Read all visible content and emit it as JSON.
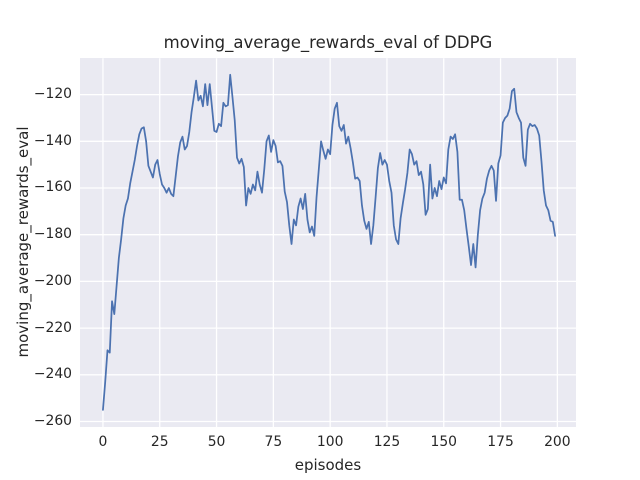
{
  "chart_data": {
    "type": "line",
    "title": "moving_average_rewards_eval of DDPG",
    "xlabel": "episodes",
    "ylabel": "moving_average_rewards_eval",
    "series_name": "moving_average_rewards_eval",
    "legend": false,
    "grid": true,
    "x_ticks": [
      0,
      25,
      50,
      75,
      100,
      125,
      150,
      175,
      200
    ],
    "y_ticks": [
      -120,
      -140,
      -160,
      -180,
      -200,
      -220,
      -240,
      -260
    ],
    "xlim": [
      -10.1,
      208.2
    ],
    "ylim": [
      -262.7,
      -104.4
    ],
    "x_start": 0,
    "x_step": 1,
    "styles": {
      "fig_bg": "#ffffff",
      "plot_bg": "#eaeaf2",
      "grid_color": "#ffffff",
      "line_color": "#4c72b0",
      "text_color": "#262626"
    },
    "y": [
      -255,
      -243,
      -229.5,
      -230.5,
      -208.5,
      -214,
      -202,
      -190,
      -182,
      -173,
      -167.5,
      -164.5,
      -158,
      -153,
      -148,
      -142,
      -137,
      -134.5,
      -134,
      -140,
      -150.5,
      -153,
      -155.5,
      -150,
      -148,
      -154,
      -158.5,
      -160,
      -162,
      -160,
      -162.5,
      -163.5,
      -155,
      -146.5,
      -140.5,
      -138,
      -143.5,
      -142,
      -136,
      -127.5,
      -121,
      -114,
      -122.5,
      -120.5,
      -125,
      -115.5,
      -124.5,
      -115.5,
      -125.5,
      -135.5,
      -136,
      -132.5,
      -133.5,
      -123.5,
      -125,
      -124.5,
      -111.5,
      -121,
      -131,
      -147,
      -149.5,
      -147.5,
      -151,
      -167.5,
      -160,
      -162.5,
      -158.5,
      -161,
      -153,
      -158.5,
      -162,
      -152,
      -140,
      -137.5,
      -144.5,
      -139.5,
      -142,
      -149,
      -148.5,
      -150.5,
      -161.5,
      -166,
      -176,
      -184,
      -173.5,
      -176,
      -168,
      -164.5,
      -169,
      -162.5,
      -173.5,
      -179,
      -176.5,
      -180.5,
      -164,
      -152,
      -140,
      -144,
      -147.5,
      -143.5,
      -145.5,
      -133,
      -126,
      -123.5,
      -133.5,
      -135.5,
      -133,
      -141,
      -138,
      -143,
      -149,
      -156,
      -155.5,
      -157,
      -167.5,
      -174,
      -177.5,
      -174.5,
      -184,
      -176,
      -164,
      -151.5,
      -145,
      -150,
      -148,
      -150,
      -157,
      -162,
      -176,
      -182,
      -184,
      -173,
      -166.5,
      -160.5,
      -153.5,
      -143.5,
      -145.5,
      -150,
      -148.5,
      -154.5,
      -153,
      -158.5,
      -171.5,
      -169,
      -150,
      -164.5,
      -160,
      -163.5,
      -157,
      -160.5,
      -155.5,
      -158,
      -143.5,
      -138,
      -139,
      -137,
      -144.5,
      -165,
      -165,
      -169.5,
      -177.5,
      -185,
      -193,
      -184,
      -194,
      -180,
      -169.5,
      -164.5,
      -162,
      -156,
      -152.5,
      -150.5,
      -152.5,
      -165.5,
      -149.5,
      -146,
      -132,
      -130,
      -129,
      -126,
      -118.5,
      -117.5,
      -127.5,
      -130,
      -132,
      -147,
      -150.5,
      -135,
      -132.5,
      -133.5,
      -133,
      -134.5,
      -137.5,
      -148.5,
      -161,
      -167.5,
      -169.5,
      -174,
      -174.5,
      -180.5
    ]
  }
}
